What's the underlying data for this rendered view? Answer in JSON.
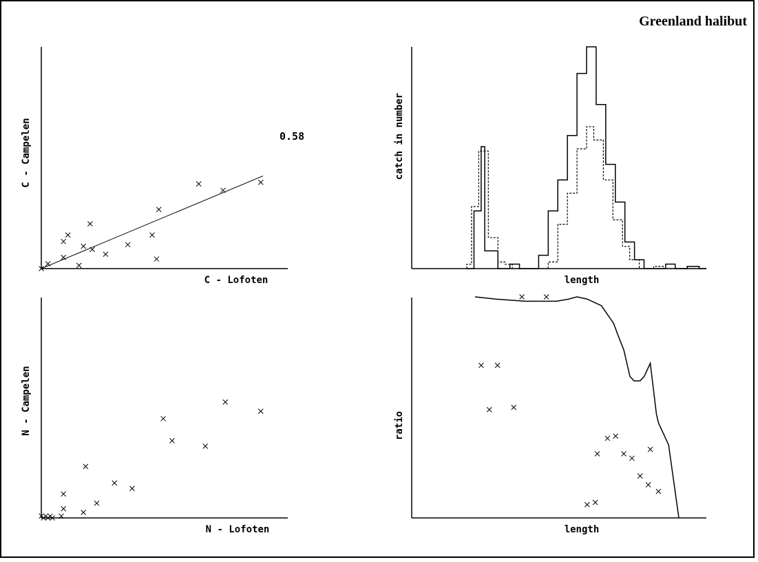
{
  "page": {
    "title": "Greenland halibut"
  },
  "chart_data": [
    {
      "id": "c_scatter",
      "type": "scatter",
      "xlabel": "C - Lofoten",
      "ylabel": "C - Campelen",
      "xlim": [
        0,
        1
      ],
      "ylim": [
        0,
        1
      ],
      "grid": false,
      "annotation": "0.58",
      "points": [
        {
          "x": 0.0,
          "y": 0.0
        },
        {
          "x": 0.03,
          "y": 0.03
        },
        {
          "x": 0.1,
          "y": 0.07
        },
        {
          "x": 0.17,
          "y": 0.02
        },
        {
          "x": 0.1,
          "y": 0.17
        },
        {
          "x": 0.12,
          "y": 0.21
        },
        {
          "x": 0.19,
          "y": 0.14
        },
        {
          "x": 0.23,
          "y": 0.12
        },
        {
          "x": 0.22,
          "y": 0.28
        },
        {
          "x": 0.29,
          "y": 0.09
        },
        {
          "x": 0.39,
          "y": 0.15
        },
        {
          "x": 0.5,
          "y": 0.21
        },
        {
          "x": 0.52,
          "y": 0.06
        },
        {
          "x": 0.53,
          "y": 0.37
        },
        {
          "x": 0.71,
          "y": 0.53
        },
        {
          "x": 0.82,
          "y": 0.49
        },
        {
          "x": 0.99,
          "y": 0.54
        }
      ],
      "fit_line": {
        "x": [
          0.0,
          1.0
        ],
        "y": [
          0.0,
          0.58
        ]
      }
    },
    {
      "id": "n_scatter",
      "type": "scatter",
      "xlabel": "N - Lofoten",
      "ylabel": "N - Campelen",
      "xlim": [
        0,
        1
      ],
      "ylim": [
        0,
        1
      ],
      "grid": false,
      "points": [
        {
          "x": 0.0,
          "y": 0.01
        },
        {
          "x": 0.01,
          "y": 0.0
        },
        {
          "x": 0.02,
          "y": 0.01
        },
        {
          "x": 0.03,
          "y": 0.0
        },
        {
          "x": 0.04,
          "y": 0.01
        },
        {
          "x": 0.05,
          "y": 0.0
        },
        {
          "x": 0.09,
          "y": 0.01
        },
        {
          "x": 0.1,
          "y": 0.05
        },
        {
          "x": 0.1,
          "y": 0.13
        },
        {
          "x": 0.19,
          "y": 0.03
        },
        {
          "x": 0.2,
          "y": 0.28
        },
        {
          "x": 0.25,
          "y": 0.08
        },
        {
          "x": 0.33,
          "y": 0.19
        },
        {
          "x": 0.41,
          "y": 0.16
        },
        {
          "x": 0.55,
          "y": 0.54
        },
        {
          "x": 0.59,
          "y": 0.42
        },
        {
          "x": 0.74,
          "y": 0.39
        },
        {
          "x": 0.83,
          "y": 0.63
        },
        {
          "x": 0.99,
          "y": 0.58
        }
      ]
    },
    {
      "id": "catch_hist",
      "type": "line",
      "xlabel": "length",
      "ylabel": "catch in number",
      "xlim": [
        0,
        1
      ],
      "ylim": [
        0,
        1
      ],
      "grid": false,
      "series": [
        {
          "style": "solid",
          "steps": [
            [
              0.0,
              0.0
            ],
            [
              0.03,
              0.0
            ],
            [
              0.03,
              0.26
            ],
            [
              0.06,
              0.26
            ],
            [
              0.06,
              0.55
            ],
            [
              0.075,
              0.55
            ],
            [
              0.075,
              0.08
            ],
            [
              0.13,
              0.08
            ],
            [
              0.13,
              0.0
            ],
            [
              0.18,
              0.0
            ],
            [
              0.18,
              0.02
            ],
            [
              0.22,
              0.02
            ],
            [
              0.22,
              0.0
            ],
            [
              0.3,
              0.0
            ],
            [
              0.3,
              0.06
            ],
            [
              0.34,
              0.06
            ],
            [
              0.34,
              0.26
            ],
            [
              0.38,
              0.26
            ],
            [
              0.38,
              0.4
            ],
            [
              0.42,
              0.4
            ],
            [
              0.42,
              0.6
            ],
            [
              0.46,
              0.6
            ],
            [
              0.46,
              0.88
            ],
            [
              0.5,
              0.88
            ],
            [
              0.5,
              1.0
            ],
            [
              0.54,
              1.0
            ],
            [
              0.54,
              0.74
            ],
            [
              0.58,
              0.74
            ],
            [
              0.58,
              0.47
            ],
            [
              0.62,
              0.47
            ],
            [
              0.62,
              0.3
            ],
            [
              0.66,
              0.3
            ],
            [
              0.66,
              0.12
            ],
            [
              0.7,
              0.12
            ],
            [
              0.7,
              0.04
            ],
            [
              0.74,
              0.04
            ],
            [
              0.74,
              0.0
            ],
            [
              0.83,
              0.0
            ],
            [
              0.83,
              0.02
            ],
            [
              0.87,
              0.02
            ],
            [
              0.87,
              0.0
            ],
            [
              0.92,
              0.0
            ],
            [
              0.92,
              0.01
            ],
            [
              0.97,
              0.01
            ],
            [
              0.97,
              0.0
            ],
            [
              1.0,
              0.0
            ]
          ]
        },
        {
          "style": "dashed",
          "steps": [
            [
              0.0,
              0.0
            ],
            [
              0.0,
              0.02
            ],
            [
              0.02,
              0.02
            ],
            [
              0.02,
              0.28
            ],
            [
              0.05,
              0.28
            ],
            [
              0.05,
              0.53
            ],
            [
              0.09,
              0.53
            ],
            [
              0.09,
              0.14
            ],
            [
              0.13,
              0.14
            ],
            [
              0.13,
              0.03
            ],
            [
              0.16,
              0.03
            ],
            [
              0.16,
              0.02
            ],
            [
              0.19,
              0.02
            ],
            [
              0.19,
              0.0
            ],
            [
              0.34,
              0.0
            ],
            [
              0.34,
              0.03
            ],
            [
              0.38,
              0.03
            ],
            [
              0.38,
              0.2
            ],
            [
              0.42,
              0.2
            ],
            [
              0.42,
              0.34
            ],
            [
              0.46,
              0.34
            ],
            [
              0.46,
              0.54
            ],
            [
              0.5,
              0.54
            ],
            [
              0.5,
              0.64
            ],
            [
              0.53,
              0.64
            ],
            [
              0.53,
              0.58
            ],
            [
              0.57,
              0.58
            ],
            [
              0.57,
              0.4
            ],
            [
              0.61,
              0.4
            ],
            [
              0.61,
              0.22
            ],
            [
              0.65,
              0.22
            ],
            [
              0.65,
              0.1
            ],
            [
              0.68,
              0.1
            ],
            [
              0.68,
              0.04
            ],
            [
              0.72,
              0.04
            ],
            [
              0.72,
              0.0
            ],
            [
              0.78,
              0.0
            ],
            [
              0.78,
              0.01
            ],
            [
              0.82,
              0.01
            ],
            [
              0.82,
              0.0
            ],
            [
              1.0,
              0.0
            ]
          ]
        }
      ]
    },
    {
      "id": "ratio_plot",
      "type": "scatter",
      "xlabel": "length",
      "ylabel": "ratio",
      "xlim": [
        0,
        1
      ],
      "ylim": [
        0,
        1
      ],
      "grid": false,
      "points": [
        {
          "x": 0.23,
          "y": 1.0
        },
        {
          "x": 0.35,
          "y": 1.0
        },
        {
          "x": 0.03,
          "y": 0.69
        },
        {
          "x": 0.11,
          "y": 0.69
        },
        {
          "x": 0.07,
          "y": 0.49
        },
        {
          "x": 0.19,
          "y": 0.5
        },
        {
          "x": 0.65,
          "y": 0.36
        },
        {
          "x": 0.69,
          "y": 0.37
        },
        {
          "x": 0.6,
          "y": 0.29
        },
        {
          "x": 0.73,
          "y": 0.29
        },
        {
          "x": 0.77,
          "y": 0.27
        },
        {
          "x": 0.86,
          "y": 0.31
        },
        {
          "x": 0.81,
          "y": 0.19
        },
        {
          "x": 0.85,
          "y": 0.15
        },
        {
          "x": 0.9,
          "y": 0.12
        },
        {
          "x": 0.55,
          "y": 0.06
        },
        {
          "x": 0.59,
          "y": 0.07
        }
      ],
      "line": {
        "x": [
          0.0,
          0.1,
          0.25,
          0.4,
          0.46,
          0.5,
          0.55,
          0.62,
          0.68,
          0.7,
          0.73,
          0.76,
          0.78,
          0.81,
          0.83,
          0.86,
          0.89,
          0.9,
          0.93,
          0.95,
          1.0
        ],
        "y": [
          1.0,
          0.99,
          0.98,
          0.98,
          0.99,
          1.0,
          0.99,
          0.96,
          0.88,
          0.83,
          0.76,
          0.64,
          0.62,
          0.62,
          0.64,
          0.7,
          0.47,
          0.43,
          0.37,
          0.33,
          0.0
        ]
      }
    }
  ]
}
